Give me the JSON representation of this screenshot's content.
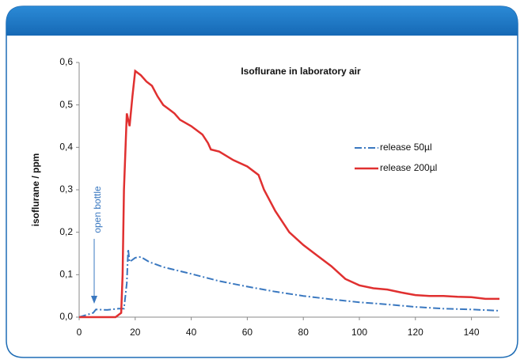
{
  "chart_data": {
    "type": "line",
    "title": "Isoflurane in laboratory air",
    "y_label": "isoflurane / ppm",
    "annotation": "open bottle",
    "xlim": [
      0,
      150
    ],
    "ylim": [
      0,
      0.6
    ],
    "xticks": [
      0,
      20,
      40,
      60,
      80,
      100,
      120,
      140
    ],
    "yticks": [
      {
        "value": 0,
        "label": "0,0"
      },
      {
        "value": 0.1,
        "label": "0,1"
      },
      {
        "value": 0.2,
        "label": "0,2"
      },
      {
        "value": 0.3,
        "label": "0,3"
      },
      {
        "value": 0.4,
        "label": "0,4"
      },
      {
        "value": 0.5,
        "label": "0,5"
      },
      {
        "value": 0.6,
        "label": "0,6"
      }
    ],
    "legend": "right",
    "series": [
      {
        "name": "release 50µl",
        "color": "#3a78c0",
        "line_style": "dashdot",
        "x": [
          0,
          5,
          6,
          10,
          14,
          16,
          17,
          17.5,
          18,
          20,
          22,
          25,
          30,
          40,
          50,
          60,
          70,
          80,
          90,
          100,
          110,
          120,
          130,
          140,
          150
        ],
        "values": [
          0,
          0.01,
          0.018,
          0.017,
          0.02,
          0.02,
          0.08,
          0.16,
          0.13,
          0.14,
          0.142,
          0.13,
          0.118,
          0.102,
          0.085,
          0.072,
          0.06,
          0.05,
          0.042,
          0.035,
          0.03,
          0.024,
          0.02,
          0.018,
          0.015
        ]
      },
      {
        "name": "release 200µl",
        "color": "#e03030",
        "line_style": "solid",
        "x": [
          0,
          13,
          14,
          15,
          15.5,
          16,
          17,
          18,
          19,
          20,
          22,
          24,
          26,
          28,
          30,
          32,
          34,
          36,
          40,
          44,
          46,
          47,
          50,
          55,
          60,
          64,
          66,
          70,
          75,
          80,
          85,
          90,
          95,
          100,
          105,
          110,
          115,
          120,
          125,
          130,
          135,
          140,
          145,
          150
        ],
        "values": [
          0,
          0,
          0.005,
          0.01,
          0.1,
          0.3,
          0.48,
          0.45,
          0.52,
          0.58,
          0.57,
          0.555,
          0.545,
          0.52,
          0.5,
          0.49,
          0.48,
          0.465,
          0.45,
          0.43,
          0.41,
          0.395,
          0.39,
          0.37,
          0.355,
          0.335,
          0.3,
          0.25,
          0.2,
          0.17,
          0.145,
          0.12,
          0.09,
          0.075,
          0.068,
          0.065,
          0.058,
          0.052,
          0.05,
          0.05,
          0.048,
          0.047,
          0.043,
          0.043
        ]
      }
    ]
  }
}
